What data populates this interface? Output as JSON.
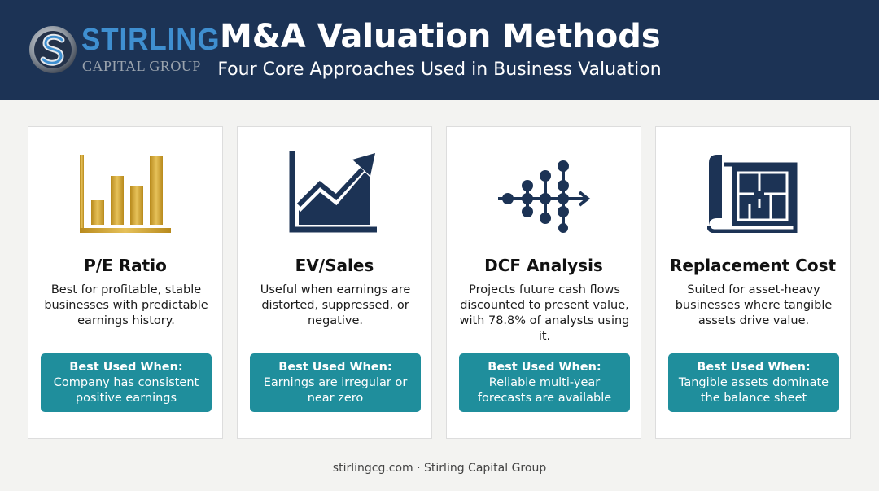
{
  "brand": {
    "name": "STIRLING",
    "sub": "CAPITAL GROUP",
    "logo_icon": "stirling-s-emblem-icon",
    "colors": {
      "navy": "#1c3355",
      "blue": "#3f8fd0",
      "gray": "#9aa3ad"
    }
  },
  "header": {
    "title": "M&A Valuation Methods",
    "subtitle": "Four Core Approaches Used in Business Valuation"
  },
  "cards": [
    {
      "icon": "bar-chart-icon",
      "icon_color": "#c9a227",
      "title": "P/E Ratio",
      "description": "Best for profitable, stable businesses with predictable earnings history.",
      "best_label": "Best Used When:",
      "best_text": "Company has consistent positive earnings"
    },
    {
      "icon": "trend-up-chart-icon",
      "icon_color": "#1c3355",
      "title": "EV/Sales",
      "description": "Useful when earnings are distorted, suppressed, or negative.",
      "best_label": "Best Used When:",
      "best_text": "Earnings are irregular or near zero"
    },
    {
      "icon": "cash-flow-network-icon",
      "icon_color": "#1c3355",
      "title": "DCF Analysis",
      "description": "Projects future cash flows discounted to present value, with 78.8% of analysts using it.",
      "best_label": "Best Used When:",
      "best_text": "Reliable multi-year forecasts are available"
    },
    {
      "icon": "blueprint-icon",
      "icon_color": "#1c3355",
      "title": "Replacement Cost",
      "description": "Suited for asset-heavy businesses where tangible assets drive value.",
      "best_label": "Best Used When:",
      "best_text": "Tangible assets dominate the balance sheet"
    }
  ],
  "accent_color": "#1f8e9c",
  "footer": {
    "text": "stirlingcg.com · Stirling Capital Group"
  }
}
